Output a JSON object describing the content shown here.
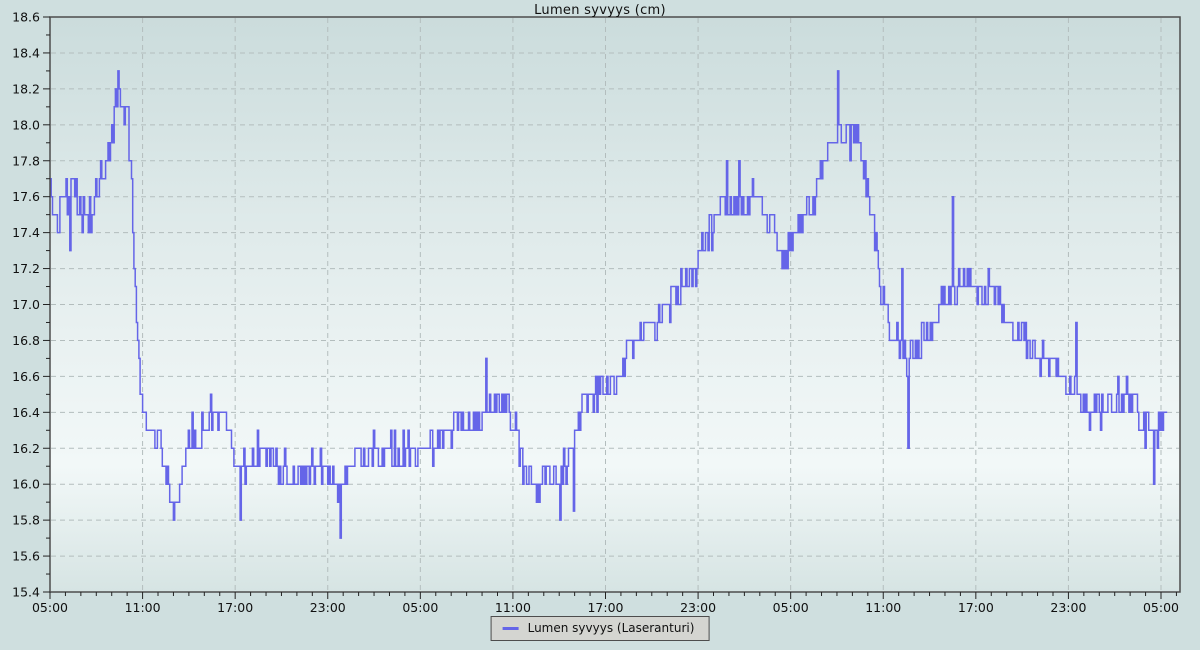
{
  "title": "Lumen syvyys (cm)",
  "legend": {
    "items": [
      {
        "label": "Lumen syvyys (Laseranturi)",
        "color": "#6565e8"
      }
    ]
  },
  "colors": {
    "line": "#6565e8",
    "grid": "#b3bdbd",
    "border": "#4d4d4d",
    "tick": "#222222",
    "text": "#101010",
    "margin_bg": "#cfdfdf",
    "legend_bg": "#d4d5d1",
    "plot_gradient": [
      "#cbdcdc",
      "#d9e6e6",
      "#e9f1f1",
      "#f2f8f8",
      "#d6e4e3"
    ]
  },
  "chart_data": {
    "type": "line",
    "title": "Lumen syvyys (cm)",
    "xlabel": "",
    "ylabel": "",
    "grid": true,
    "legend_position": "bottom-center",
    "ylim": [
      15.4,
      18.6
    ],
    "y_major_step": 0.2,
    "y_minor_step": 0.1,
    "y_tick_labels": [
      "18.6",
      "18.4",
      "18.2",
      "18.0",
      "17.8",
      "17.6",
      "17.4",
      "17.2",
      "17.0",
      "16.8",
      "16.6",
      "16.4",
      "16.2",
      "16.0",
      "15.8",
      "15.6",
      "15.4"
    ],
    "x_total_hours": 72,
    "x_major_step_hours": 6,
    "x_minor_step_hours": 1,
    "x_tick_labels": [
      "05:00",
      "11:00",
      "17:00",
      "23:00",
      "05:00",
      "11:00",
      "17:00",
      "23:00",
      "05:00",
      "11:00",
      "17:00",
      "23:00",
      "05:00"
    ],
    "series": [
      {
        "name": "Lumen syvyys (Laseranturi)",
        "color": "#6565e8",
        "unit": "cm",
        "observed_min": 15.7,
        "observed_max": 18.3,
        "t_end_hours": 72.45,
        "sample_step_hours": 0.08,
        "noise_amplitude": 0.085,
        "quantize_step": 0.1,
        "trend_points": [
          [
            0,
            17.62
          ],
          [
            0.5,
            17.5
          ],
          [
            1,
            17.62
          ],
          [
            1.6,
            17.7
          ],
          [
            2.1,
            17.55
          ],
          [
            2.6,
            17.55
          ],
          [
            3.1,
            17.7
          ],
          [
            3.6,
            17.85
          ],
          [
            4.0,
            18.05
          ],
          [
            4.3,
            18.18
          ],
          [
            4.7,
            18.15
          ],
          [
            5.0,
            18.1
          ],
          [
            5.2,
            17.85
          ],
          [
            5.5,
            17.2
          ],
          [
            5.8,
            16.7
          ],
          [
            6.1,
            16.4
          ],
          [
            6.5,
            16.25
          ],
          [
            7.0,
            16.3
          ],
          [
            7.4,
            16.2
          ],
          [
            7.8,
            16.0
          ],
          [
            8.1,
            15.9
          ],
          [
            8.4,
            16.05
          ],
          [
            9.0,
            16.28
          ],
          [
            9.6,
            16.33
          ],
          [
            10.2,
            16.42
          ],
          [
            10.8,
            16.48
          ],
          [
            11.3,
            16.42
          ],
          [
            11.8,
            16.28
          ],
          [
            12.2,
            16.18
          ],
          [
            12.7,
            16.12
          ],
          [
            13.5,
            16.15
          ],
          [
            14.5,
            16.18
          ],
          [
            15.5,
            16.12
          ],
          [
            16.5,
            16.1
          ],
          [
            17.5,
            16.12
          ],
          [
            18.2,
            16.05
          ],
          [
            18.7,
            15.92
          ],
          [
            19.2,
            16.0
          ],
          [
            20,
            16.1
          ],
          [
            21,
            16.12
          ],
          [
            22,
            16.15
          ],
          [
            23,
            16.15
          ],
          [
            24,
            16.2
          ],
          [
            25,
            16.3
          ],
          [
            26,
            16.38
          ],
          [
            27,
            16.38
          ],
          [
            28,
            16.42
          ],
          [
            29,
            16.4
          ],
          [
            29.7,
            16.42
          ],
          [
            30.2,
            16.3
          ],
          [
            30.7,
            16.12
          ],
          [
            31.4,
            16.05
          ],
          [
            32.2,
            16.1
          ],
          [
            32.9,
            15.98
          ],
          [
            33.5,
            16.05
          ],
          [
            34.1,
            16.25
          ],
          [
            34.8,
            16.4
          ],
          [
            35.6,
            16.48
          ],
          [
            36.5,
            16.52
          ],
          [
            37.3,
            16.62
          ],
          [
            38,
            16.8
          ],
          [
            39,
            16.88
          ],
          [
            40,
            16.93
          ],
          [
            41,
            17.02
          ],
          [
            41.8,
            17.12
          ],
          [
            42.5,
            17.3
          ],
          [
            43.2,
            17.45
          ],
          [
            44,
            17.48
          ],
          [
            45,
            17.52
          ],
          [
            46,
            17.55
          ],
          [
            46.7,
            17.48
          ],
          [
            47.4,
            17.32
          ],
          [
            48.1,
            17.42
          ],
          [
            48.7,
            17.48
          ],
          [
            49.3,
            17.6
          ],
          [
            49.9,
            17.8
          ],
          [
            50.5,
            17.95
          ],
          [
            51.1,
            18.02
          ],
          [
            51.7,
            17.98
          ],
          [
            52.3,
            17.88
          ],
          [
            52.9,
            17.68
          ],
          [
            53.4,
            17.42
          ],
          [
            53.9,
            17.1
          ],
          [
            54.4,
            16.82
          ],
          [
            54.9,
            16.85
          ],
          [
            55.4,
            16.68
          ],
          [
            55.9,
            16.72
          ],
          [
            56.5,
            16.82
          ],
          [
            57.1,
            16.9
          ],
          [
            57.7,
            17.0
          ],
          [
            58.4,
            17.1
          ],
          [
            59.2,
            17.12
          ],
          [
            60,
            17.1
          ],
          [
            61,
            17.12
          ],
          [
            62,
            17.0
          ],
          [
            63,
            16.88
          ],
          [
            64,
            16.75
          ],
          [
            65,
            16.65
          ],
          [
            66,
            16.58
          ],
          [
            67,
            16.5
          ],
          [
            68,
            16.45
          ],
          [
            69,
            16.48
          ],
          [
            70,
            16.45
          ],
          [
            71,
            16.38
          ],
          [
            71.8,
            16.4
          ],
          [
            72.45,
            16.45
          ]
        ],
        "spikes": [
          [
            1.3,
            17.3
          ],
          [
            4.4,
            18.3
          ],
          [
            8.0,
            15.8
          ],
          [
            12.3,
            15.8
          ],
          [
            18.8,
            15.7
          ],
          [
            28.2,
            16.7
          ],
          [
            33.0,
            15.8
          ],
          [
            33.9,
            15.85
          ],
          [
            43.8,
            17.8
          ],
          [
            44.6,
            17.8
          ],
          [
            51.0,
            18.3
          ],
          [
            55.2,
            17.2
          ],
          [
            55.6,
            16.2
          ],
          [
            58.5,
            17.6
          ],
          [
            66.5,
            16.9
          ],
          [
            71.5,
            16.0
          ]
        ]
      }
    ]
  }
}
